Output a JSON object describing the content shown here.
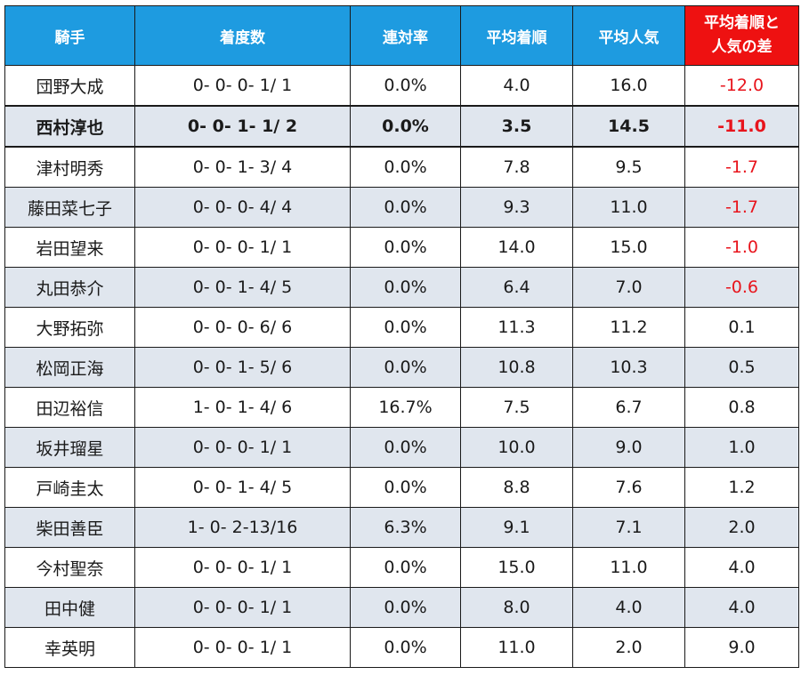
{
  "headers": {
    "jockey": "騎手",
    "record": "着度数",
    "rentai_rate": "連対率",
    "avg_finish": "平均着順",
    "avg_popularity": "平均人気",
    "diff_line1": "平均着順と",
    "diff_line2": "人気の差"
  },
  "rows": [
    {
      "jockey": "団野大成",
      "record": "0- 0- 0- 1/ 1",
      "rate": "0.0%",
      "avg_finish": "4.0",
      "avg_popularity": "16.0",
      "diff": "-12.0"
    },
    {
      "jockey": "西村淳也",
      "record": "0- 0- 1- 1/ 2",
      "rate": "0.0%",
      "avg_finish": "3.5",
      "avg_popularity": "14.5",
      "diff": "-11.0"
    },
    {
      "jockey": "津村明秀",
      "record": "0- 0- 1- 3/ 4",
      "rate": "0.0%",
      "avg_finish": "7.8",
      "avg_popularity": "9.5",
      "diff": "-1.7"
    },
    {
      "jockey": "藤田菜七子",
      "record": "0- 0- 0- 4/ 4",
      "rate": "0.0%",
      "avg_finish": "9.3",
      "avg_popularity": "11.0",
      "diff": "-1.7"
    },
    {
      "jockey": "岩田望来",
      "record": "0- 0- 0- 1/ 1",
      "rate": "0.0%",
      "avg_finish": "14.0",
      "avg_popularity": "15.0",
      "diff": "-1.0"
    },
    {
      "jockey": "丸田恭介",
      "record": "0- 0- 1- 4/ 5",
      "rate": "0.0%",
      "avg_finish": "6.4",
      "avg_popularity": "7.0",
      "diff": "-0.6"
    },
    {
      "jockey": "大野拓弥",
      "record": "0- 0- 0- 6/ 6",
      "rate": "0.0%",
      "avg_finish": "11.3",
      "avg_popularity": "11.2",
      "diff": "0.1"
    },
    {
      "jockey": "松岡正海",
      "record": "0- 0- 1- 5/ 6",
      "rate": "0.0%",
      "avg_finish": "10.8",
      "avg_popularity": "10.3",
      "diff": "0.5"
    },
    {
      "jockey": "田辺裕信",
      "record": "1- 0- 1- 4/ 6",
      "rate": "16.7%",
      "avg_finish": "7.5",
      "avg_popularity": "6.7",
      "diff": "0.8"
    },
    {
      "jockey": "坂井瑠星",
      "record": "0- 0- 0- 1/ 1",
      "rate": "0.0%",
      "avg_finish": "10.0",
      "avg_popularity": "9.0",
      "diff": "1.0"
    },
    {
      "jockey": "戸崎圭太",
      "record": "0- 0- 1- 4/ 5",
      "rate": "0.0%",
      "avg_finish": "8.8",
      "avg_popularity": "7.6",
      "diff": "1.2"
    },
    {
      "jockey": "柴田善臣",
      "record": "1- 0- 2-13/16",
      "rate": "6.3%",
      "avg_finish": "9.1",
      "avg_popularity": "7.1",
      "diff": "2.0"
    },
    {
      "jockey": "今村聖奈",
      "record": "0- 0- 0- 1/ 1",
      "rate": "0.0%",
      "avg_finish": "15.0",
      "avg_popularity": "11.0",
      "diff": "4.0"
    },
    {
      "jockey": "田中健",
      "record": "0- 0- 0- 1/ 1",
      "rate": "0.0%",
      "avg_finish": "8.0",
      "avg_popularity": "4.0",
      "diff": "4.0"
    },
    {
      "jockey": "幸英明",
      "record": "0- 0- 0- 1/ 1",
      "rate": "0.0%",
      "avg_finish": "11.0",
      "avg_popularity": "2.0",
      "diff": "9.0"
    }
  ],
  "highlighted_row": 1,
  "colors": {
    "header_bg": "#1e9be0",
    "highlight_header_bg": "#ee1111",
    "negative_text": "#e8141c",
    "stripe_bg": "#e0e6ee"
  }
}
